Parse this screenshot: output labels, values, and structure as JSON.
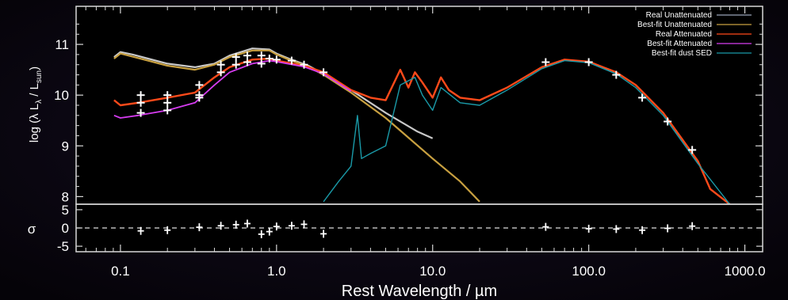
{
  "chart_data": [
    {
      "type": "line",
      "panel": "SED",
      "xlabel": "Rest Wavelength / µm",
      "ylabel": "log (λ L",
      "ylabel_sub1": "λ",
      "ylabel_mid": " / L",
      "ylabel_sub2": "sun",
      "ylabel_end": ")",
      "xscale": "log",
      "xlim": [
        0.052,
        1300
      ],
      "ylim": [
        7.85,
        11.75
      ],
      "x_ticks": [
        0.1,
        1.0,
        10.0,
        100.0,
        1000.0
      ],
      "x_tick_labels": [
        "0.1",
        "1.0",
        "10.0",
        "100.0",
        "1000.0"
      ],
      "y_ticks": [
        8,
        9,
        10,
        11
      ],
      "y_tick_labels": [
        "8",
        "9",
        "10",
        "11"
      ],
      "legend_position": "top-right",
      "legend": [
        {
          "label": "Real Unattenuated",
          "color": "#9aa4b8"
        },
        {
          "label": "Best-fit Unattenuated",
          "color": "#c8a040"
        },
        {
          "label": "Real Attenuated",
          "color": "#ff4a1a"
        },
        {
          "label": "Best-fit Attenuated",
          "color": "#d63cf0"
        },
        {
          "label": "Best-fit dust SED",
          "color": "#1a9aa8"
        }
      ],
      "series": [
        {
          "name": "Real Unattenuated",
          "color": "#c9c9c9",
          "x": [
            0.091,
            0.1,
            0.12,
            0.15,
            0.2,
            0.3,
            0.4,
            0.5,
            0.7,
            0.9,
            1.0,
            1.2,
            1.6,
            2.0,
            3.0,
            5.0,
            8.0,
            10.0
          ],
          "y": [
            10.75,
            10.85,
            10.8,
            10.72,
            10.62,
            10.55,
            10.62,
            10.78,
            10.92,
            10.9,
            10.82,
            10.72,
            10.58,
            10.42,
            10.1,
            9.65,
            9.28,
            9.15
          ]
        },
        {
          "name": "Best-fit Unattenuated",
          "color": "#c8a040",
          "x": [
            0.091,
            0.1,
            0.15,
            0.2,
            0.3,
            0.4,
            0.5,
            0.7,
            0.9,
            1.0,
            1.2,
            1.6,
            2.0,
            3.0,
            5.0,
            10.0,
            15.0,
            20.0
          ],
          "y": [
            10.72,
            10.82,
            10.68,
            10.58,
            10.5,
            10.6,
            10.75,
            10.88,
            10.88,
            10.8,
            10.7,
            10.56,
            10.4,
            10.05,
            9.55,
            8.75,
            8.3,
            7.9
          ]
        },
        {
          "name": "Real Attenuated",
          "color": "#ff4a1a",
          "x": [
            0.091,
            0.1,
            0.13,
            0.2,
            0.3,
            0.4,
            0.5,
            0.7,
            0.9,
            1.0,
            1.5,
            2.0,
            3.0,
            4.0,
            5.0,
            6.2,
            7.0,
            7.7,
            8.6,
            10.0,
            11.3,
            12.7,
            15.0,
            20.0,
            30.0,
            50.0,
            70.0,
            100.0,
            150.0,
            200.0,
            300.0,
            500.0,
            600.0,
            800.0
          ],
          "y": [
            9.9,
            9.8,
            9.85,
            9.95,
            10.05,
            10.35,
            10.55,
            10.7,
            10.72,
            10.68,
            10.58,
            10.45,
            10.1,
            9.95,
            9.9,
            10.5,
            10.15,
            10.45,
            10.25,
            9.95,
            10.35,
            10.1,
            9.95,
            9.9,
            10.15,
            10.55,
            10.7,
            10.66,
            10.45,
            10.2,
            9.65,
            8.7,
            8.15,
            7.85
          ]
        },
        {
          "name": "Best-fit Attenuated",
          "color": "#d63cf0",
          "x": [
            0.091,
            0.1,
            0.13,
            0.2,
            0.3,
            0.4,
            0.5,
            0.7,
            0.9,
            1.0,
            1.5,
            2.0,
            3.0
          ],
          "y": [
            9.6,
            9.55,
            9.6,
            9.7,
            9.85,
            10.2,
            10.45,
            10.62,
            10.68,
            10.66,
            10.56,
            10.42,
            10.08
          ]
        },
        {
          "name": "Best-fit dust SED",
          "color": "#1a9aa8",
          "x": [
            2.0,
            2.5,
            3.0,
            3.3,
            3.5,
            4.0,
            5.0,
            6.2,
            7.7,
            8.6,
            10.0,
            11.3,
            15.0,
            20.0,
            30.0,
            50.0,
            70.0,
            100.0,
            150.0,
            200.0,
            300.0,
            500.0,
            800.0
          ],
          "y": [
            7.9,
            8.3,
            8.6,
            9.6,
            8.75,
            8.85,
            9.0,
            10.2,
            10.35,
            10.0,
            9.7,
            10.15,
            9.85,
            9.8,
            10.1,
            10.52,
            10.68,
            10.64,
            10.42,
            10.15,
            9.6,
            8.65,
            7.85
          ]
        }
      ],
      "data_points": {
        "name": "Observed photometry",
        "color": "#ffffff",
        "x": [
          0.135,
          0.135,
          0.135,
          0.2,
          0.2,
          0.2,
          0.32,
          0.32,
          0.32,
          0.44,
          0.44,
          0.55,
          0.55,
          0.65,
          0.65,
          0.8,
          0.8,
          0.9,
          1.0,
          1.25,
          1.5,
          2.0,
          53.0,
          100.0,
          150.0,
          220.0,
          320.0,
          460.0
        ],
        "y": [
          10.0,
          9.85,
          9.65,
          10.0,
          9.85,
          9.7,
          10.2,
          10.0,
          9.95,
          10.6,
          10.45,
          10.75,
          10.6,
          10.78,
          10.65,
          10.78,
          10.62,
          10.72,
          10.7,
          10.68,
          10.6,
          10.45,
          10.65,
          10.65,
          10.4,
          9.95,
          9.48,
          8.92
        ]
      }
    },
    {
      "type": "scatter",
      "panel": "residuals",
      "ylabel": "σ",
      "xscale": "log",
      "xlim": [
        0.052,
        1300
      ],
      "ylim": [
        -6.5,
        6.5
      ],
      "y_ticks": [
        5,
        0,
        -5
      ],
      "y_tick_labels": [
        "5",
        "0",
        "-5"
      ],
      "zero_line": "dashed",
      "x": [
        0.135,
        0.2,
        0.32,
        0.44,
        0.55,
        0.65,
        0.8,
        0.9,
        1.0,
        1.25,
        1.5,
        2.0,
        53.0,
        100.0,
        150.0,
        220.0,
        320.0,
        460.0
      ],
      "y": [
        -0.8,
        -0.6,
        0.2,
        0.6,
        0.9,
        1.2,
        -1.7,
        -1.0,
        0.4,
        0.6,
        1.0,
        -1.6,
        0.3,
        -0.2,
        -0.3,
        -0.6,
        -0.1,
        0.5
      ]
    }
  ]
}
